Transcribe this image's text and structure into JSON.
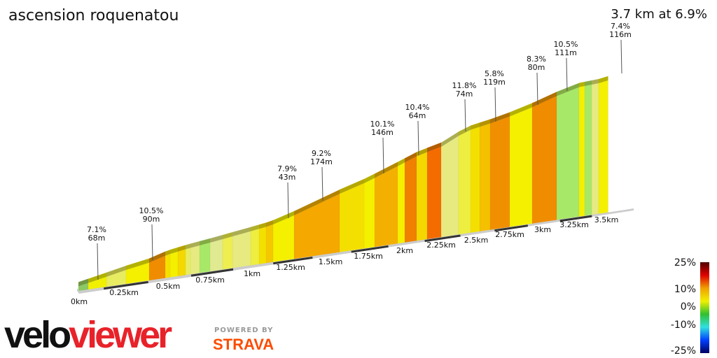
{
  "title": "ascension roquenatou",
  "summary": "3.7 km at 6.9%",
  "chart_data": {
    "type": "area",
    "title": "ascension roquenatou",
    "total_distance_km": 3.7,
    "average_grade_pct": 6.9,
    "x_ticks": [
      "0km",
      "0.25km",
      "0.5km",
      "0.75km",
      "1km",
      "1.25km",
      "1.5km",
      "1.75km",
      "2km",
      "2.25km",
      "2.5km",
      "2.75km",
      "3km",
      "3.25km",
      "3.5km"
    ],
    "annotations": [
      {
        "grade": "7.1%",
        "length": "68m"
      },
      {
        "grade": "10.5%",
        "length": "90m"
      },
      {
        "grade": "7.9%",
        "length": "43m"
      },
      {
        "grade": "9.2%",
        "length": "174m"
      },
      {
        "grade": "10.1%",
        "length": "146m"
      },
      {
        "grade": "10.4%",
        "length": "64m"
      },
      {
        "grade": "11.8%",
        "length": "74m"
      },
      {
        "grade": "5.8%",
        "length": "119m"
      },
      {
        "grade": "8.3%",
        "length": "80m"
      },
      {
        "grade": "10.5%",
        "length": "111m"
      },
      {
        "grade": "7.4%",
        "length": "116m"
      }
    ],
    "segment_colors": [
      "#8cc864",
      "#f0f000",
      "#e8ec60",
      "#f4f000",
      "#f08c00",
      "#f4e000",
      "#f4f000",
      "#f4d800",
      "#e8ec60",
      "#e6ea80",
      "#a8e868",
      "#e0ea90",
      "#eeee50",
      "#e6ea80",
      "#eeee40",
      "#f4e000",
      "#f4c800",
      "#f4f000",
      "#f4a800",
      "#f4e000",
      "#f4f000",
      "#f4b000",
      "#f4f000",
      "#f08000",
      "#f4d800",
      "#f46c00",
      "#e6ea80",
      "#eeee40",
      "#f4e000",
      "#f4c000",
      "#f09000",
      "#f4f000",
      "#f08c00",
      "#a8e868",
      "#f4f000",
      "#a8e868",
      "#e6ea80",
      "#f4f000"
    ],
    "legend": {
      "ticks": [
        "25%",
        "10%",
        "0%",
        "-10%",
        "-25%"
      ],
      "colors": [
        "#500000",
        "#e00000",
        "#f0a000",
        "#f0f000",
        "#30c030",
        "#30e0e0",
        "#0040ff",
        "#000060"
      ]
    }
  },
  "branding": {
    "velo": "velo",
    "viewer": "viewer",
    "powered_by": "POWERED BY",
    "strava": "STRAVA"
  }
}
